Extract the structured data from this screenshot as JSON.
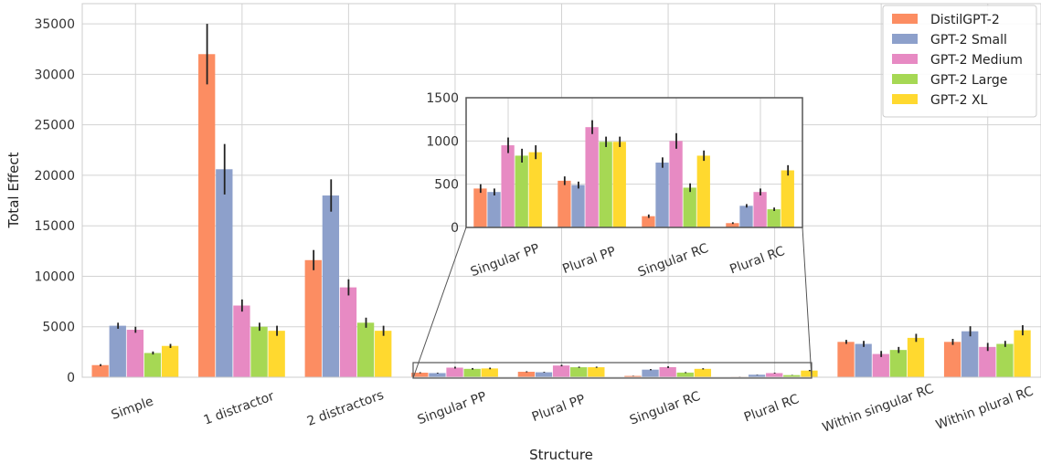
{
  "chart_data": [
    {
      "type": "bar",
      "xlabel": "Structure",
      "ylabel": "Total Effect",
      "ylim": [
        0,
        37000
      ],
      "yticks": [
        0,
        5000,
        10000,
        15000,
        20000,
        25000,
        30000,
        35000
      ],
      "grid": true,
      "legend_position": "top-right",
      "categories": [
        "Simple",
        "1 distractor",
        "2 distractors",
        "Singular PP",
        "Plural PP",
        "Singular RC",
        "Plural RC",
        "Within singular RC",
        "Within plural RC"
      ],
      "series": [
        {
          "name": "DistilGPT-2",
          "color": "#fc8d62",
          "values": [
            1200,
            32000,
            11600,
            450,
            540,
            130,
            50,
            3500,
            3500
          ],
          "errors": [
            100,
            3000,
            1000,
            50,
            50,
            20,
            10,
            200,
            300
          ]
        },
        {
          "name": "GPT-2 Small",
          "color": "#8da0cb",
          "values": [
            5100,
            20600,
            18000,
            410,
            490,
            750,
            250,
            3300,
            4550
          ],
          "errors": [
            300,
            2500,
            1600,
            40,
            40,
            60,
            20,
            300,
            500
          ]
        },
        {
          "name": "GPT-2 Medium",
          "color": "#e78ac3",
          "values": [
            4700,
            7100,
            8900,
            950,
            1160,
            1000,
            410,
            2300,
            3000
          ],
          "errors": [
            300,
            600,
            800,
            90,
            80,
            90,
            40,
            300,
            400
          ]
        },
        {
          "name": "GPT-2 Large",
          "color": "#a6d854",
          "values": [
            2400,
            5000,
            5400,
            830,
            990,
            460,
            210,
            2700,
            3300
          ],
          "errors": [
            150,
            400,
            500,
            80,
            60,
            50,
            20,
            300,
            300
          ]
        },
        {
          "name": "GPT-2 XL",
          "color": "#ffd92f",
          "values": [
            3100,
            4600,
            4600,
            870,
            990,
            830,
            660,
            3900,
            4650
          ],
          "errors": [
            200,
            500,
            500,
            80,
            60,
            60,
            60,
            400,
            500
          ]
        }
      ]
    },
    {
      "type": "bar",
      "xlabel": "",
      "ylabel": "",
      "ylim": [
        0,
        1500
      ],
      "yticks": [
        0,
        500,
        1000,
        1500
      ],
      "grid": true,
      "categories": [
        "Singular PP",
        "Plural PP",
        "Singular RC",
        "Plural RC"
      ],
      "series": [
        {
          "name": "DistilGPT-2",
          "color": "#fc8d62",
          "values": [
            450,
            540,
            130,
            50
          ],
          "errors": [
            50,
            50,
            20,
            10
          ]
        },
        {
          "name": "GPT-2 Small",
          "color": "#8da0cb",
          "values": [
            410,
            490,
            750,
            250
          ],
          "errors": [
            40,
            40,
            60,
            20
          ]
        },
        {
          "name": "GPT-2 Medium",
          "color": "#e78ac3",
          "values": [
            950,
            1160,
            1000,
            410
          ],
          "errors": [
            90,
            80,
            90,
            40
          ]
        },
        {
          "name": "GPT-2 Large",
          "color": "#a6d854",
          "values": [
            830,
            990,
            460,
            210
          ],
          "errors": [
            80,
            60,
            50,
            20
          ]
        },
        {
          "name": "GPT-2 XL",
          "color": "#ffd92f",
          "values": [
            870,
            990,
            830,
            660
          ],
          "errors": [
            80,
            60,
            60,
            60
          ]
        }
      ]
    }
  ]
}
